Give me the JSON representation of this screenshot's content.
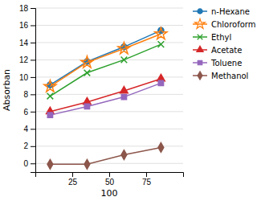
{
  "chart_data": {
    "type": "line",
    "xlabel": "100",
    "ylabel": "Absorban",
    "x": [
      10,
      35,
      60,
      85
    ],
    "series": [
      {
        "name": "n-Hexane",
        "marker": "circle",
        "values": [
          9.1,
          11.8,
          13.5,
          15.4
        ]
      },
      {
        "name": "Chloroform",
        "marker": "star",
        "values": [
          8.9,
          11.7,
          13.3,
          15.0
        ]
      },
      {
        "name": "Ethyl",
        "marker": "x",
        "values": [
          7.8,
          10.5,
          12.0,
          13.8
        ]
      },
      {
        "name": "Acetate",
        "marker": "triangle",
        "values": [
          6.0,
          7.1,
          8.4,
          9.8
        ]
      },
      {
        "name": "Toluene",
        "marker": "square",
        "values": [
          5.6,
          6.6,
          7.7,
          9.3
        ]
      },
      {
        "name": "Methanol",
        "marker": "diamond",
        "values": [
          -0.1,
          -0.1,
          1.0,
          1.85
        ]
      }
    ],
    "xlim": [
      0,
      100
    ],
    "xticks": [
      25,
      50,
      75
    ],
    "ylim": [
      -1,
      18
    ],
    "yticks": [
      0,
      2,
      4,
      6,
      8,
      10,
      12,
      14,
      16,
      18
    ],
    "grid": true,
    "legend": "right"
  }
}
